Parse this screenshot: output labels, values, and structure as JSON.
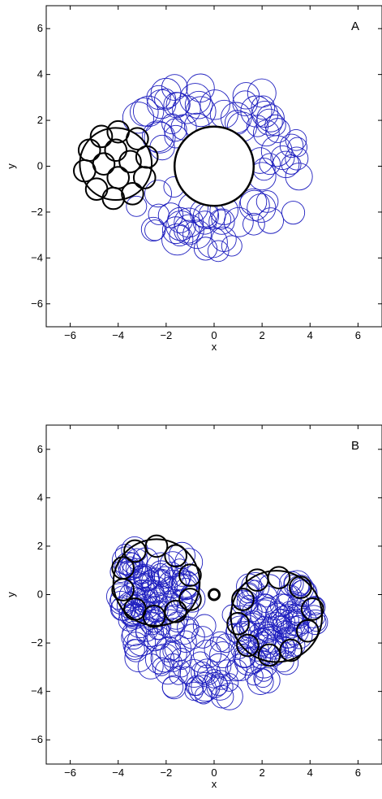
{
  "chart_data": [
    {
      "type": "scatter",
      "panel_label": "A",
      "xlabel": "x",
      "ylabel": "y",
      "xlim": [
        -7,
        7
      ],
      "ylim": [
        -7,
        7
      ],
      "xticks": [
        -6,
        -4,
        -2,
        0,
        2,
        4,
        6
      ],
      "yticks": [
        -6,
        -4,
        -2,
        0,
        2,
        4,
        6
      ],
      "grid": false,
      "colors": {
        "swarm": "#1f1fbf",
        "black": "#000000"
      },
      "center_circle": {
        "cx": 0,
        "cy": 0,
        "r": 1.65
      },
      "cluster_outline": {
        "cx": -4.1,
        "cy": 0.1,
        "r": 1.5
      },
      "cluster_circles": [
        {
          "cx": -4.0,
          "cy": 1.5,
          "r": 0.45
        },
        {
          "cx": -3.2,
          "cy": 1.2,
          "r": 0.45
        },
        {
          "cx": -2.8,
          "cy": 0.4,
          "r": 0.45
        },
        {
          "cx": -2.9,
          "cy": -0.5,
          "r": 0.45
        },
        {
          "cx": -3.4,
          "cy": -1.2,
          "r": 0.45
        },
        {
          "cx": -4.2,
          "cy": -1.4,
          "r": 0.45
        },
        {
          "cx": -4.9,
          "cy": -1.0,
          "r": 0.45
        },
        {
          "cx": -5.4,
          "cy": -0.2,
          "r": 0.45
        },
        {
          "cx": -5.2,
          "cy": 0.7,
          "r": 0.45
        },
        {
          "cx": -4.7,
          "cy": 1.3,
          "r": 0.45
        },
        {
          "cx": -4.1,
          "cy": 0.7,
          "r": 0.45
        },
        {
          "cx": -3.5,
          "cy": 0.2,
          "r": 0.45
        },
        {
          "cx": -4.0,
          "cy": -0.5,
          "r": 0.45
        },
        {
          "cx": -4.6,
          "cy": 0.1,
          "r": 0.45
        }
      ],
      "swarm": {
        "kind": "ring",
        "count": 90,
        "r_inner": 1.9,
        "r_outer": 3.9,
        "circle_r_min": 0.4,
        "circle_r_max": 0.65
      }
    },
    {
      "type": "scatter",
      "panel_label": "B",
      "xlabel": "x",
      "ylabel": "y",
      "xlim": [
        -7,
        7
      ],
      "ylim": [
        -7,
        7
      ],
      "xticks": [
        -6,
        -4,
        -2,
        0,
        2,
        4,
        6
      ],
      "yticks": [
        -6,
        -4,
        -2,
        0,
        2,
        4,
        6
      ],
      "grid": false,
      "colors": {
        "swarm": "#1f1fbf",
        "black": "#000000"
      },
      "center_circle": {
        "cx": 0,
        "cy": 0,
        "r": 0.22
      },
      "cluster_outline_left": {
        "cx": -2.4,
        "cy": 0.5,
        "r": 1.8
      },
      "cluster_outline_right": {
        "cx": 2.6,
        "cy": -0.9,
        "r": 1.9
      },
      "cluster_circles_left": [
        {
          "cx": -3.3,
          "cy": 1.8,
          "r": 0.45
        },
        {
          "cx": -2.4,
          "cy": 2.0,
          "r": 0.45
        },
        {
          "cx": -1.6,
          "cy": 1.6,
          "r": 0.45
        },
        {
          "cx": -1.0,
          "cy": 0.8,
          "r": 0.45
        },
        {
          "cx": -1.0,
          "cy": -0.2,
          "r": 0.45
        },
        {
          "cx": -1.6,
          "cy": -0.7,
          "r": 0.45
        },
        {
          "cx": -2.5,
          "cy": -0.9,
          "r": 0.45
        },
        {
          "cx": -3.3,
          "cy": -0.6,
          "r": 0.45
        },
        {
          "cx": -3.8,
          "cy": 0.2,
          "r": 0.45
        },
        {
          "cx": -3.8,
          "cy": 1.1,
          "r": 0.45
        }
      ],
      "cluster_circles_right": [
        {
          "cx": 1.8,
          "cy": 0.6,
          "r": 0.45
        },
        {
          "cx": 2.7,
          "cy": 0.7,
          "r": 0.45
        },
        {
          "cx": 3.6,
          "cy": 0.3,
          "r": 0.45
        },
        {
          "cx": 4.1,
          "cy": -0.6,
          "r": 0.45
        },
        {
          "cx": 3.9,
          "cy": -1.5,
          "r": 0.45
        },
        {
          "cx": 3.2,
          "cy": -2.3,
          "r": 0.45
        },
        {
          "cx": 2.3,
          "cy": -2.5,
          "r": 0.45
        },
        {
          "cx": 1.4,
          "cy": -2.1,
          "r": 0.45
        },
        {
          "cx": 1.0,
          "cy": -1.2,
          "r": 0.45
        },
        {
          "cx": 1.2,
          "cy": -0.2,
          "r": 0.45
        }
      ],
      "swarm": {
        "kind": "horseshoe",
        "count": 260,
        "r_inner": 0.8,
        "r_outer": 4.1,
        "circle_r_min": 0.35,
        "circle_r_max": 0.6
      }
    }
  ]
}
